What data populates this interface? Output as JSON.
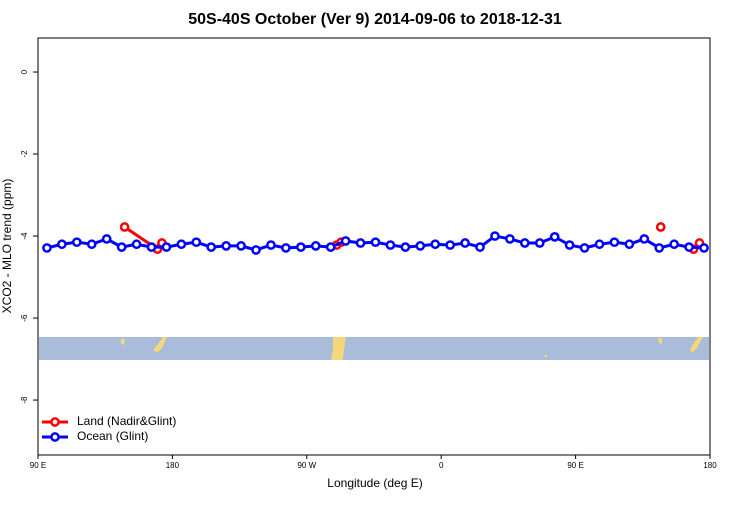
{
  "chart_data": {
    "type": "line",
    "title": "50S-40S October (Ver 9)   2014-09-06 to 2018-12-31",
    "x_label": "Longitude (deg E)",
    "y_label": "XCO2 - MLO trend (ppm)",
    "xlim": [
      90,
      540
    ],
    "ylim": [
      0.83,
      -9.34
    ],
    "xticks": [
      {
        "value": 90,
        "label": "90 E"
      },
      180,
      {
        "value": 270,
        "label": "90 W"
      },
      {
        "value": 360,
        "label": "0"
      },
      {
        "value": 450,
        "label": "90 E"
      },
      {
        "value": 540,
        "label": "180"
      }
    ],
    "yticks": [
      0,
      -2,
      -4,
      -6,
      -8
    ],
    "legend": "bottom-left",
    "series": [
      {
        "name": "Land (Nadir&Glint)",
        "color": "#ff0000",
        "x": [
          148,
          170,
          173,
          null,
          290,
          293,
          null,
          507,
          null,
          529,
          533
        ],
        "values": [
          -3.78,
          -4.32,
          -4.17,
          null,
          -4.22,
          -4.15,
          null,
          -3.78,
          null,
          -4.32,
          -4.17
        ]
      },
      {
        "name": "Ocean (Glint)",
        "color": "#0000ff",
        "x": [
          96,
          106,
          116,
          126,
          136,
          146,
          156,
          166,
          176,
          186,
          196,
          206,
          216,
          226,
          236,
          246,
          256,
          266,
          276,
          286,
          296,
          306,
          316,
          326,
          336,
          346,
          356,
          366,
          376,
          386,
          396,
          406,
          416,
          426,
          436,
          446,
          456,
          466,
          476,
          486,
          496,
          506,
          516,
          526,
          536
        ],
        "values": [
          -4.29,
          -4.2,
          -4.15,
          -4.2,
          -4.07,
          -4.27,
          -4.2,
          -4.27,
          -4.27,
          -4.2,
          -4.15,
          -4.27,
          -4.24,
          -4.24,
          -4.34,
          -4.22,
          -4.29,
          -4.27,
          -4.24,
          -4.27,
          -4.12,
          -4.17,
          -4.15,
          -4.22,
          -4.27,
          -4.24,
          -4.2,
          -4.22,
          -4.17,
          -4.27,
          -4.0,
          -4.07,
          -4.17,
          -4.17,
          -4.02,
          -4.22,
          -4.29,
          -4.2,
          -4.15,
          -4.2,
          -4.07,
          -4.29,
          -4.2,
          -4.27,
          -4.29
        ]
      }
    ]
  }
}
